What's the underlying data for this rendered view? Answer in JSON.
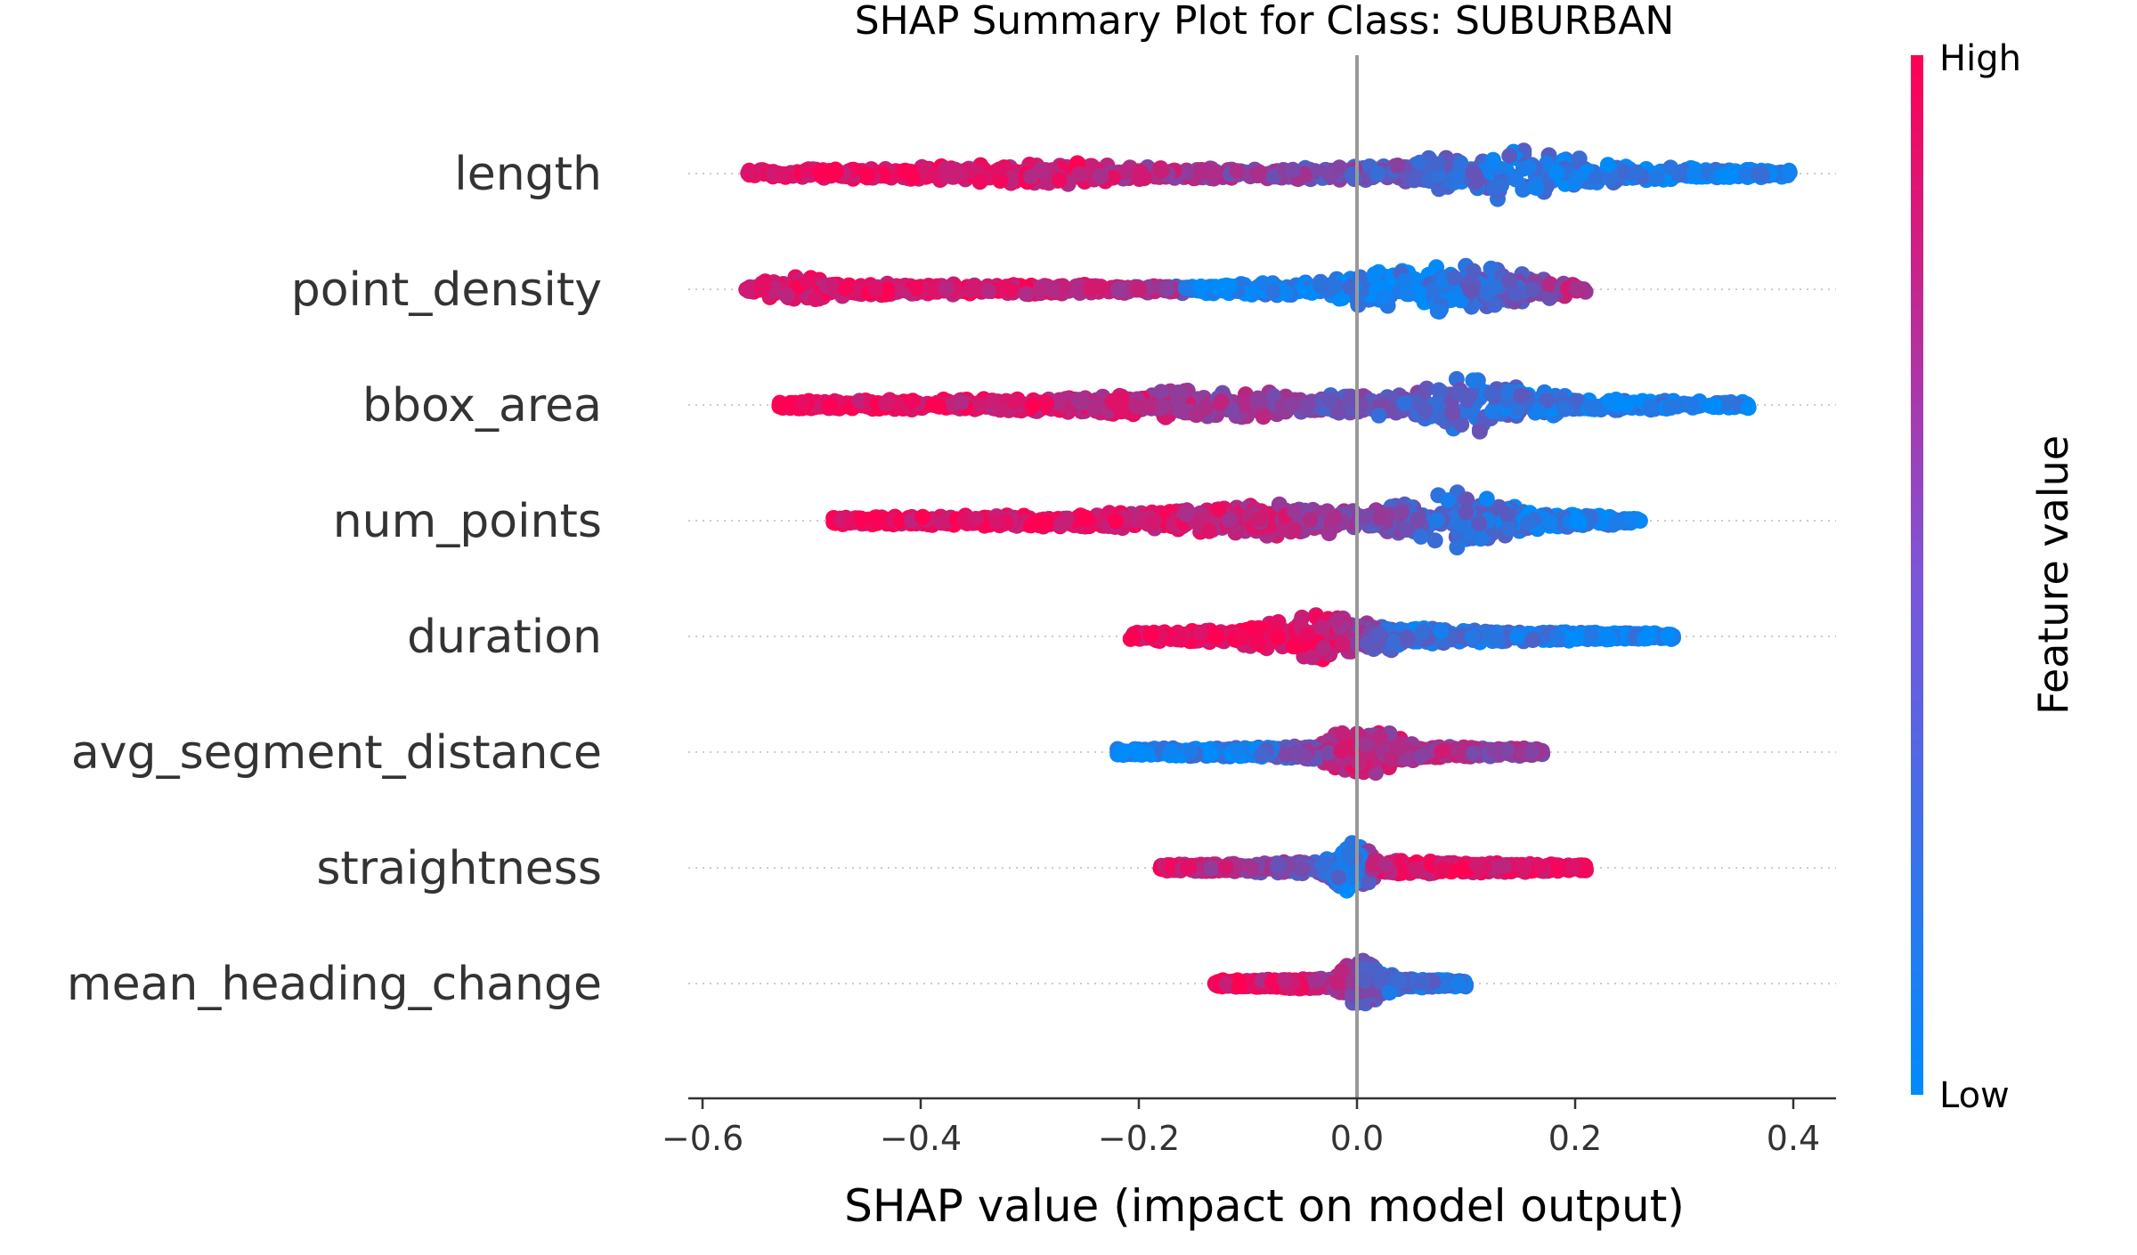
{
  "colors": {
    "high": "#ff0052",
    "low": "#008bfb",
    "zero_line": "#999999",
    "axis": "#333333",
    "row_guide": "#cccccc"
  },
  "chart_data": {
    "type": "scatter",
    "subtype": "beeswarm",
    "title": "SHAP Summary Plot for Class: SUBURBAN",
    "xlabel": "SHAP value (impact on model output)",
    "xlim": [
      -0.61,
      0.45
    ],
    "xticks": [
      -0.6,
      -0.4,
      -0.2,
      0.0,
      0.2,
      0.4
    ],
    "xtick_labels": [
      "−0.6",
      "−0.4",
      "−0.2",
      "0.0",
      "0.2",
      "0.4"
    ],
    "colorbar": {
      "title": "Feature value",
      "high_label": "High",
      "low_label": "Low"
    },
    "features": [
      {
        "name": "length",
        "min": -0.56,
        "max": 0.4,
        "density": [
          [
            -0.56,
            0.06,
            0.95
          ],
          [
            -0.45,
            0.1,
            0.9
          ],
          [
            -0.35,
            0.14,
            0.85
          ],
          [
            -0.26,
            0.22,
            0.85
          ],
          [
            -0.2,
            0.12,
            0.7
          ],
          [
            -0.1,
            0.07,
            0.55
          ],
          [
            0.05,
            0.15,
            0.35
          ],
          [
            0.08,
            0.42,
            0.3
          ],
          [
            0.1,
            0.22,
            0.25
          ],
          [
            0.13,
            0.48,
            0.2
          ],
          [
            0.18,
            0.32,
            0.15
          ],
          [
            0.25,
            0.14,
            0.1
          ],
          [
            0.4,
            0.05,
            0.05
          ]
        ]
      },
      {
        "name": "point_density",
        "min": -0.56,
        "max": 0.21,
        "density": [
          [
            -0.56,
            0.06,
            0.9
          ],
          [
            -0.52,
            0.22,
            0.9
          ],
          [
            -0.45,
            0.1,
            0.9
          ],
          [
            -0.3,
            0.08,
            0.85
          ],
          [
            -0.17,
            0.06,
            0.6
          ],
          [
            -0.15,
            0.08,
            0.05
          ],
          [
            -0.05,
            0.12,
            0.05
          ],
          [
            0.02,
            0.35,
            0.1
          ],
          [
            0.06,
            0.3,
            0.1
          ],
          [
            0.09,
            0.52,
            0.2
          ],
          [
            0.13,
            0.35,
            0.3
          ],
          [
            0.18,
            0.15,
            0.6
          ],
          [
            0.21,
            0.05,
            0.75
          ]
        ]
      },
      {
        "name": "bbox_area",
        "min": -0.53,
        "max": 0.36,
        "density": [
          [
            -0.53,
            0.06,
            0.95
          ],
          [
            -0.4,
            0.09,
            0.9
          ],
          [
            -0.25,
            0.12,
            0.8
          ],
          [
            -0.2,
            0.2,
            0.75
          ],
          [
            -0.13,
            0.32,
            0.6
          ],
          [
            -0.08,
            0.22,
            0.55
          ],
          [
            -0.03,
            0.18,
            0.45
          ],
          [
            0.05,
            0.2,
            0.35
          ],
          [
            0.1,
            0.52,
            0.28
          ],
          [
            0.15,
            0.35,
            0.2
          ],
          [
            0.2,
            0.12,
            0.12
          ],
          [
            0.36,
            0.05,
            0.05
          ]
        ]
      },
      {
        "name": "num_points",
        "min": -0.48,
        "max": 0.26,
        "density": [
          [
            -0.48,
            0.06,
            0.95
          ],
          [
            -0.3,
            0.1,
            0.9
          ],
          [
            -0.18,
            0.16,
            0.85
          ],
          [
            -0.1,
            0.26,
            0.75
          ],
          [
            -0.05,
            0.28,
            0.65
          ],
          [
            0.0,
            0.18,
            0.5
          ],
          [
            0.05,
            0.3,
            0.35
          ],
          [
            0.09,
            0.55,
            0.25
          ],
          [
            0.13,
            0.3,
            0.18
          ],
          [
            0.18,
            0.12,
            0.1
          ],
          [
            0.26,
            0.05,
            0.05
          ]
        ]
      },
      {
        "name": "duration",
        "min": -0.21,
        "max": 0.29,
        "density": [
          [
            -0.21,
            0.08,
            0.95
          ],
          [
            -0.12,
            0.1,
            0.92
          ],
          [
            -0.06,
            0.3,
            0.9
          ],
          [
            -0.025,
            0.5,
            0.88
          ],
          [
            0.0,
            0.22,
            0.6
          ],
          [
            0.02,
            0.28,
            0.35
          ],
          [
            0.05,
            0.15,
            0.2
          ],
          [
            0.12,
            0.1,
            0.15
          ],
          [
            0.2,
            0.07,
            0.1
          ],
          [
            0.29,
            0.05,
            0.05
          ]
        ]
      },
      {
        "name": "avg_segment_distance",
        "min": -0.22,
        "max": 0.17,
        "density": [
          [
            -0.22,
            0.06,
            0.05
          ],
          [
            -0.1,
            0.08,
            0.1
          ],
          [
            -0.04,
            0.12,
            0.5
          ],
          [
            -0.01,
            0.4,
            0.8
          ],
          [
            0.01,
            0.52,
            0.75
          ],
          [
            0.03,
            0.3,
            0.7
          ],
          [
            0.06,
            0.12,
            0.7
          ],
          [
            0.12,
            0.08,
            0.6
          ],
          [
            0.17,
            0.05,
            0.55
          ]
        ]
      },
      {
        "name": "straightness",
        "min": -0.18,
        "max": 0.21,
        "density": [
          [
            -0.18,
            0.05,
            0.9
          ],
          [
            -0.1,
            0.07,
            0.6
          ],
          [
            -0.03,
            0.12,
            0.3
          ],
          [
            -0.01,
            0.45,
            0.1
          ],
          [
            0.0,
            0.5,
            0.1
          ],
          [
            0.02,
            0.15,
            0.85
          ],
          [
            0.08,
            0.1,
            0.9
          ],
          [
            0.16,
            0.07,
            0.9
          ],
          [
            0.21,
            0.05,
            0.9
          ]
        ]
      },
      {
        "name": "mean_heading_change",
        "min": -0.13,
        "max": 0.1,
        "density": [
          [
            -0.13,
            0.05,
            0.9
          ],
          [
            -0.07,
            0.07,
            0.85
          ],
          [
            -0.02,
            0.1,
            0.7
          ],
          [
            0.0,
            0.5,
            0.5
          ],
          [
            0.01,
            0.35,
            0.4
          ],
          [
            0.04,
            0.08,
            0.2
          ],
          [
            0.1,
            0.05,
            0.15
          ]
        ]
      }
    ]
  }
}
